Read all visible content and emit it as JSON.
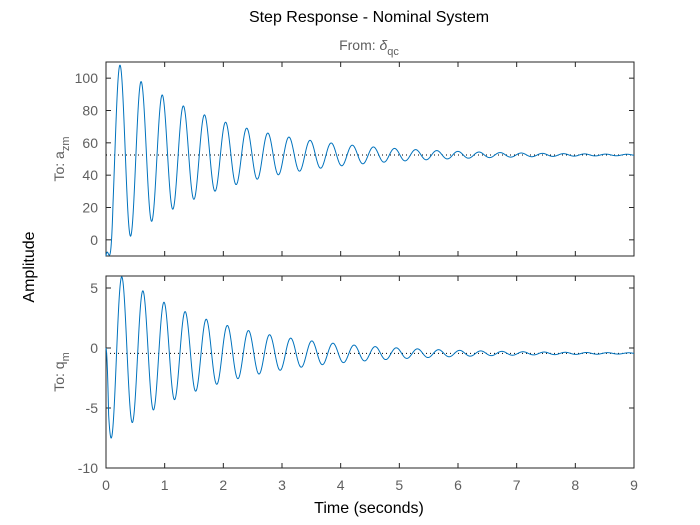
{
  "chart_data": {
    "type": "line",
    "title": "Step Response - Nominal System",
    "subtitle": {
      "prefix": "From: ",
      "symbol": "δ",
      "subscript": "qc"
    },
    "xlabel": "Time (seconds)",
    "ylabel": "Amplitude",
    "xlim": [
      0,
      9
    ],
    "x_ticks": [
      "0",
      "1",
      "2",
      "3",
      "4",
      "5",
      "6",
      "7",
      "8",
      "9"
    ],
    "grid": false,
    "line_color": "#0072BD",
    "steady_color": "#000000",
    "panels": [
      {
        "name": "a_zm",
        "ylabel_prefix": "To: a",
        "ylabel_sub": "zm",
        "ylim": [
          -10,
          110
        ],
        "y_ticks": [
          "0",
          "20",
          "40",
          "60",
          "80",
          "100"
        ],
        "steady_state": 52.5,
        "series": {
          "initial": -10,
          "first_peak": 108,
          "first_peak_time": 0.24,
          "period": 0.36,
          "damping": 0.56
        }
      },
      {
        "name": "q_m",
        "ylabel_prefix": "To: q",
        "ylabel_sub": "m",
        "ylim": [
          -10,
          6
        ],
        "y_ticks": [
          "-10",
          "-5",
          "0",
          "5"
        ],
        "steady_state": -0.45,
        "series": {
          "initial": 0,
          "first_peak": -7.5,
          "first_peak_time": 0.09,
          "period": 0.36,
          "damping": 0.56
        }
      }
    ]
  }
}
